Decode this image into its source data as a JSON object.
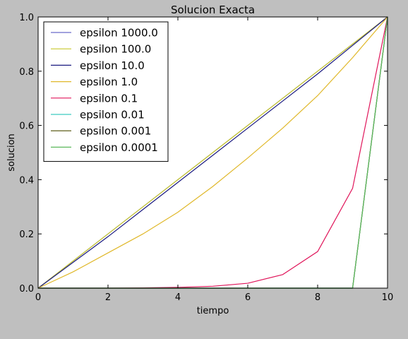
{
  "window": {
    "background": "#bfbfbf",
    "axes_background": "#ffffff"
  },
  "chart_data": {
    "type": "line",
    "title": "Solucion Exacta",
    "xlabel": "tiempo",
    "ylabel": "solucion",
    "xlim": [
      0,
      10
    ],
    "ylim": [
      0.0,
      1.0
    ],
    "grid": false,
    "legend_position": "top-left",
    "x_ticks": [
      "0",
      "2",
      "4",
      "6",
      "8",
      "10"
    ],
    "y_ticks": [
      "0.0",
      "0.2",
      "0.4",
      "0.6",
      "0.8",
      "1.0"
    ],
    "x": [
      0,
      1,
      2,
      3,
      4,
      5,
      6,
      7,
      8,
      9,
      10
    ],
    "series": [
      {
        "name": "epsilon 1000.0",
        "color": "#6b6bc9",
        "values": [
          0.0,
          0.1,
          0.2,
          0.3,
          0.4,
          0.5,
          0.6,
          0.7,
          0.8,
          0.9,
          1.0
        ]
      },
      {
        "name": "epsilon 100.0",
        "color": "#c9c92a",
        "values": [
          0.0,
          0.1,
          0.2,
          0.3,
          0.4,
          0.5,
          0.6,
          0.7,
          0.8,
          0.9,
          1.0
        ]
      },
      {
        "name": "epsilon 10.0",
        "color": "#1a1a80",
        "values": [
          0.0,
          0.095,
          0.19,
          0.29,
          0.39,
          0.49,
          0.59,
          0.69,
          0.79,
          0.895,
          1.0
        ]
      },
      {
        "name": "epsilon 1.0",
        "color": "#e0b82a",
        "values": [
          0.0,
          0.06,
          0.13,
          0.2,
          0.28,
          0.375,
          0.48,
          0.59,
          0.71,
          0.85,
          1.0
        ]
      },
      {
        "name": "epsilon 0.1",
        "color": "#e0155a",
        "values": [
          0.0,
          0.0,
          0.0,
          0.001,
          0.003,
          0.007,
          0.018,
          0.05,
          0.135,
          0.368,
          1.0
        ]
      },
      {
        "name": "epsilon 0.01",
        "color": "#3fc9c0",
        "values": [
          0.0,
          0.0,
          0.0,
          0.0,
          0.0,
          0.0,
          0.0,
          0.0,
          0.0,
          0.0,
          1.0
        ]
      },
      {
        "name": "epsilon 0.001",
        "color": "#4d4d00",
        "values": [
          0.0,
          0.0,
          0.0,
          0.0,
          0.0,
          0.0,
          0.0,
          0.0,
          0.0,
          0.0,
          1.0
        ]
      },
      {
        "name": "epsilon 0.0001",
        "color": "#5cb85c",
        "values": [
          0.0,
          0.0,
          0.0,
          0.0,
          0.0,
          0.0,
          0.0,
          0.0,
          0.0,
          0.0,
          1.0
        ]
      }
    ]
  }
}
